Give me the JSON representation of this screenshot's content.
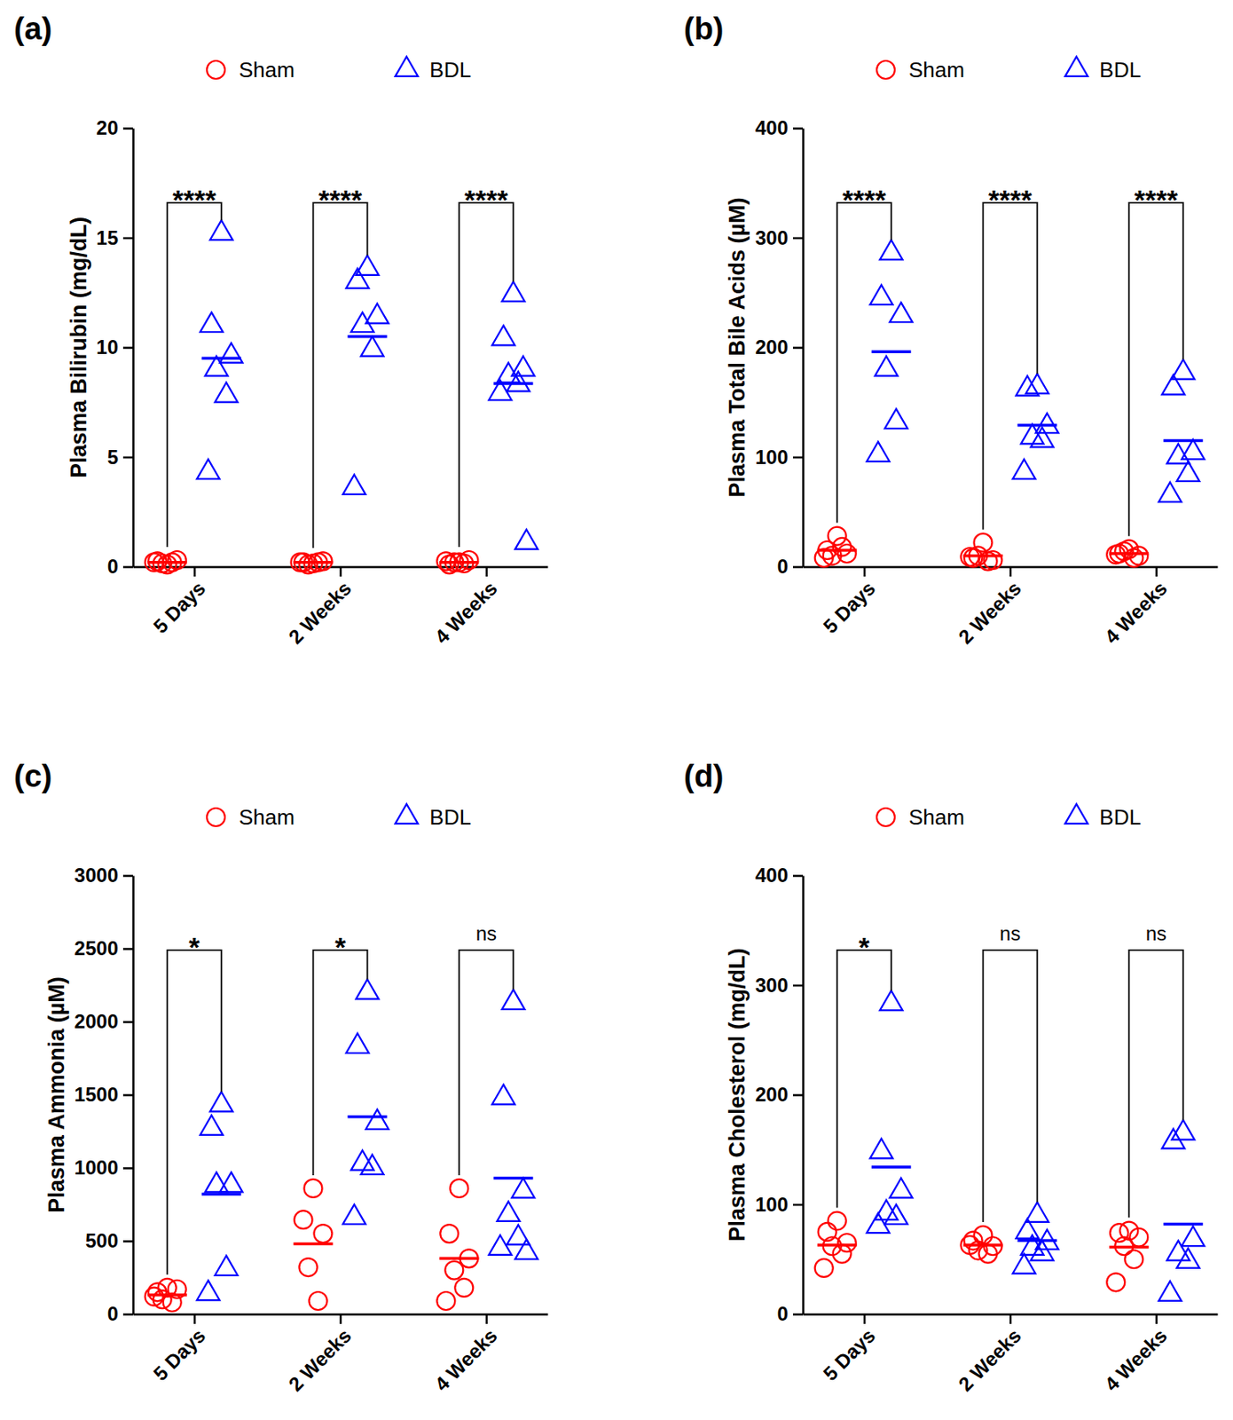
{
  "chart_data": [
    {
      "type": "scatter",
      "panel": "(a)",
      "y_label": "Plasma Bilirubin (mg/dL)",
      "categories": [
        "5 Days",
        "2 Weeks",
        "4 Weeks"
      ],
      "ylim": [
        0,
        20
      ],
      "yticks": [
        0,
        5,
        10,
        15,
        20
      ],
      "legend": "top",
      "series": [
        {
          "name": "Sham",
          "color": "#ff0000",
          "marker": "circle",
          "values": [
            [
              0.1,
              0.25,
              0.3,
              0.15,
              0.2,
              0.2
            ],
            [
              0.15,
              0.2,
              0.25,
              0.1,
              0.2,
              0.2
            ],
            [
              0.2,
              0.1,
              0.3,
              0.2,
              0.15,
              0.25
            ]
          ],
          "means": [
            0.2,
            0.2,
            0.2
          ]
        },
        {
          "name": "BDL",
          "color": "#0000ff",
          "marker": "triangle",
          "values": [
            [
              15.2,
              11.0,
              9.6,
              9.0,
              7.8,
              4.3
            ],
            [
              13.6,
              13.0,
              11.4,
              11.0,
              9.9,
              3.6
            ],
            [
              12.4,
              10.4,
              9.0,
              8.7,
              8.3,
              7.9,
              1.1
            ]
          ],
          "means": [
            9.5,
            10.5,
            8.35
          ]
        }
      ],
      "annotations": [
        "****",
        "****",
        "****"
      ]
    },
    {
      "type": "scatter",
      "panel": "(b)",
      "y_label": "Plasma Total Bile Acids (µM)",
      "categories": [
        "5 Days",
        "2 Weeks",
        "4 Weeks"
      ],
      "ylim": [
        0,
        400
      ],
      "yticks": [
        0,
        100,
        200,
        300,
        400
      ],
      "legend": "top",
      "series": [
        {
          "name": "Sham",
          "color": "#ff0000",
          "marker": "circle",
          "values": [
            [
              28,
              15,
              12,
              10,
              18,
              8
            ],
            [
              22,
              8,
              6,
              10,
              5,
              9
            ],
            [
              16,
              12,
              10,
              14,
              8,
              11
            ]
          ],
          "means": [
            15,
            10,
            12
          ]
        },
        {
          "name": "BDL",
          "color": "#0000ff",
          "marker": "triangle",
          "values": [
            [
              286,
              245,
              229,
              180,
              132,
              102
            ],
            [
              164,
              162,
              128,
              118,
              115,
              86
            ],
            [
              177,
              163,
              104,
              100,
              84,
              65
            ]
          ],
          "means": [
            196,
            129,
            115
          ]
        }
      ],
      "annotations": [
        "****",
        "****",
        "****"
      ]
    },
    {
      "type": "scatter",
      "panel": "(c)",
      "y_label": "Plasma Ammonia (µM)",
      "categories": [
        "5 Days",
        "2 Weeks",
        "4 Weeks"
      ],
      "ylim": [
        0,
        3000
      ],
      "yticks": [
        0,
        500,
        1000,
        1500,
        2000,
        2500,
        3000
      ],
      "legend": "top",
      "series": [
        {
          "name": "Sham",
          "color": "#ff0000",
          "marker": "circle",
          "values": [
            [
              180,
              150,
              170,
              100,
              80,
              120
            ],
            [
              860,
              645,
              550,
              320,
              90
            ],
            [
              860,
              550,
              380,
              300,
              180,
              90
            ]
          ],
          "means": [
            130,
            480,
            380
          ]
        },
        {
          "name": "BDL",
          "color": "#0000ff",
          "marker": "triangle",
          "values": [
            [
              1430,
              1270,
              880,
              880,
              310,
              140
            ],
            [
              2200,
              1830,
              1310,
              1030,
              1000,
              660
            ],
            [
              2130,
              1480,
              840,
              680,
              520,
              450,
              420
            ]
          ],
          "means": [
            820,
            1350,
            930
          ]
        }
      ],
      "annotations": [
        "*",
        "*",
        "ns"
      ]
    },
    {
      "type": "scatter",
      "panel": "(d)",
      "y_label": "Plasma Cholesterol (mg/dL)",
      "categories": [
        "5 Days",
        "2 Weeks",
        "4 Weeks"
      ],
      "ylim": [
        0,
        400
      ],
      "yticks": [
        0,
        100,
        200,
        300,
        400
      ],
      "legend": "top",
      "series": [
        {
          "name": "Sham",
          "color": "#ff0000",
          "marker": "circle",
          "values": [
            [
              85,
              75,
              65,
              62,
              55,
              42
            ],
            [
              72,
              67,
              62,
              58,
              55,
              63
            ],
            [
              76,
              74,
              70,
              62,
              50,
              29
            ]
          ],
          "means": [
            63,
            63,
            61
          ]
        },
        {
          "name": "BDL",
          "color": "#0000ff",
          "marker": "triangle",
          "values": [
            [
              283,
              148,
              112,
              92,
              88,
              80
            ],
            [
              90,
              75,
              65,
              60,
              55,
              43
            ],
            [
              165,
              157,
              68,
              55,
              48,
              18
            ]
          ],
          "means": [
            134,
            67,
            82
          ]
        }
      ],
      "annotations": [
        "*",
        "ns",
        "ns"
      ]
    }
  ]
}
